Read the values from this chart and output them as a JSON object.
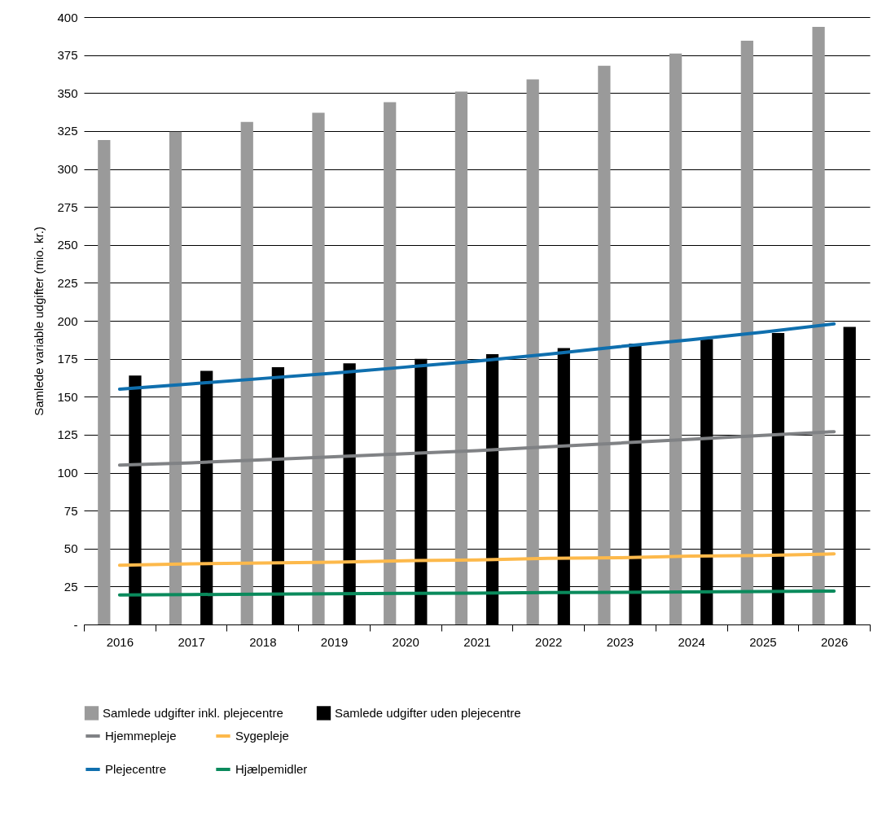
{
  "chart_data": {
    "type": "bar",
    "ylabel": "Samlede variable udgifter (mio. kr.)",
    "categories": [
      "2016",
      "2017",
      "2018",
      "2019",
      "2020",
      "2021",
      "2022",
      "2023",
      "2024",
      "2025",
      "2026"
    ],
    "series": [
      {
        "name": "Samlede udgifter inkl. plejecentre",
        "color": "#9a9a9a",
        "values": [
          319,
          324.5,
          331,
          337,
          344,
          351,
          359,
          368,
          376,
          384.5,
          393.5
        ]
      },
      {
        "name": "Samlede udgifter uden plejecentre",
        "color": "#000000",
        "values": [
          164,
          167,
          169.5,
          172,
          175,
          178,
          182,
          185,
          188,
          192,
          196
        ]
      },
      {
        "name": "Hjemmepleje",
        "type": "line",
        "color": "#808285",
        "values": [
          105,
          106.5,
          108.5,
          110.5,
          112.5,
          114.5,
          117,
          119.5,
          122,
          124.5,
          127
        ]
      },
      {
        "name": "Sygepleje",
        "type": "line",
        "color": "#fdb94b",
        "values": [
          39,
          40,
          40.5,
          41,
          42,
          42.5,
          43.5,
          44,
          45,
          45.5,
          46.5
        ]
      },
      {
        "name": "Plejecentre",
        "type": "line",
        "color": "#0f6fae",
        "values": [
          155,
          158.5,
          162,
          165.5,
          169.5,
          173.5,
          178,
          183,
          187.5,
          192.5,
          198
        ]
      },
      {
        "name": "Hjælpemidler",
        "type": "line",
        "color": "#0a8a5c",
        "values": [
          19.5,
          19.7,
          20,
          20.2,
          20.5,
          20.7,
          21,
          21.2,
          21.5,
          21.7,
          22
        ]
      }
    ],
    "ylim": [
      0,
      400
    ],
    "yticks": [
      {
        "value": 0,
        "label": "-"
      },
      25,
      50,
      75,
      100,
      125,
      150,
      175,
      200,
      225,
      250,
      275,
      300,
      325,
      350,
      375,
      400
    ],
    "grid": "y",
    "legend": "bottom"
  }
}
